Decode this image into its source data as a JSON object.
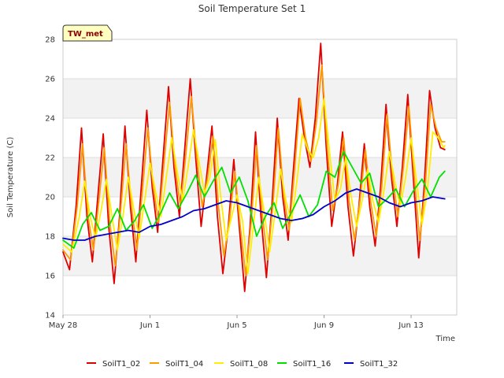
{
  "chart_data": {
    "type": "line",
    "title": "Soil Temperature Set 1",
    "xlabel": "Time",
    "ylabel": "Soil Temperature (C)",
    "badge": "TW_met",
    "x_tick_labels": [
      "May 28",
      "Jun 1",
      "Jun 5",
      "Jun 9",
      "Jun 13"
    ],
    "x_ticks_day_offset": [
      0,
      4,
      8,
      12,
      16
    ],
    "xlim_days": [
      0,
      18.1
    ],
    "ylim": [
      14,
      28
    ],
    "y_ticks": [
      14,
      16,
      18,
      20,
      22,
      24,
      26,
      28
    ],
    "grid": true,
    "legend_position": "bottom",
    "series": [
      {
        "name": "SoilT1_02",
        "color": "#e00000",
        "x_days": [
          0.0,
          0.3,
          0.6,
          0.85,
          1.1,
          1.35,
          1.6,
          1.85,
          2.1,
          2.35,
          2.6,
          2.85,
          3.1,
          3.35,
          3.6,
          3.85,
          4.1,
          4.35,
          4.6,
          4.85,
          5.1,
          5.35,
          5.6,
          5.85,
          6.1,
          6.35,
          6.6,
          6.85,
          7.1,
          7.35,
          7.6,
          7.85,
          8.1,
          8.35,
          8.6,
          8.85,
          9.1,
          9.35,
          9.6,
          9.85,
          10.1,
          10.35,
          10.6,
          10.85,
          11.1,
          11.35,
          11.6,
          11.85,
          12.1,
          12.35,
          12.6,
          12.85,
          13.1,
          13.35,
          13.6,
          13.85,
          14.1,
          14.35,
          14.6,
          14.85,
          15.1,
          15.35,
          15.6,
          15.85,
          16.1,
          16.35,
          16.6,
          16.85,
          17.1,
          17.35,
          17.55
        ],
        "y": [
          17.2,
          16.3,
          19.5,
          23.5,
          19.0,
          16.7,
          20.0,
          23.2,
          18.5,
          15.6,
          19.0,
          23.6,
          19.5,
          16.7,
          20.5,
          24.4,
          20.5,
          18.2,
          22.0,
          25.6,
          21.5,
          19.0,
          22.5,
          26.0,
          22.0,
          18.5,
          21.0,
          23.6,
          19.0,
          16.1,
          18.5,
          21.9,
          18.5,
          15.2,
          18.5,
          23.3,
          19.0,
          15.9,
          19.5,
          24.0,
          20.0,
          17.8,
          21.5,
          25.0,
          23.0,
          21.5,
          24.0,
          27.8,
          22.5,
          18.5,
          20.5,
          23.3,
          19.5,
          17.0,
          19.5,
          22.7,
          19.5,
          17.5,
          20.5,
          24.7,
          21.0,
          18.5,
          21.5,
          25.2,
          21.0,
          16.9,
          20.5,
          25.4,
          23.5,
          22.5,
          22.4
        ]
      },
      {
        "name": "SoilT1_04",
        "color": "#ff9900",
        "x_days": [
          0.0,
          0.35,
          0.65,
          0.9,
          1.15,
          1.4,
          1.65,
          1.9,
          2.15,
          2.4,
          2.65,
          2.9,
          3.15,
          3.4,
          3.65,
          3.9,
          4.15,
          4.4,
          4.65,
          4.9,
          5.15,
          5.4,
          5.65,
          5.9,
          6.15,
          6.4,
          6.65,
          6.9,
          7.15,
          7.4,
          7.65,
          7.9,
          8.15,
          8.4,
          8.65,
          8.9,
          9.15,
          9.4,
          9.65,
          9.9,
          10.15,
          10.4,
          10.65,
          10.9,
          11.15,
          11.4,
          11.65,
          11.9,
          12.15,
          12.4,
          12.65,
          12.9,
          13.15,
          13.4,
          13.65,
          13.9,
          14.15,
          14.4,
          14.65,
          14.9,
          15.15,
          15.4,
          15.65,
          15.9,
          16.15,
          16.4,
          16.65,
          16.9,
          17.15,
          17.4,
          17.55
        ],
        "y": [
          17.3,
          16.8,
          19.5,
          22.7,
          19.0,
          17.3,
          19.8,
          22.5,
          18.7,
          16.5,
          19.3,
          22.7,
          19.5,
          17.3,
          20.3,
          23.5,
          20.5,
          18.7,
          21.8,
          24.8,
          21.5,
          19.5,
          22.2,
          25.1,
          22.0,
          19.5,
          21.0,
          23.1,
          19.5,
          17.0,
          18.8,
          21.3,
          18.5,
          16.0,
          18.7,
          22.6,
          19.2,
          16.8,
          19.6,
          23.5,
          20.0,
          18.3,
          21.4,
          25.0,
          23.0,
          21.8,
          23.8,
          26.7,
          22.5,
          19.3,
          20.6,
          23.0,
          19.8,
          17.8,
          19.8,
          22.4,
          19.7,
          18.0,
          20.5,
          24.2,
          21.0,
          19.0,
          21.5,
          24.6,
          21.0,
          17.8,
          20.5,
          24.7,
          23.5,
          22.8,
          22.8
        ]
      },
      {
        "name": "SoilT1_08",
        "color": "#ffee00",
        "x_days": [
          0.0,
          0.4,
          0.75,
          1.0,
          1.25,
          1.5,
          1.75,
          2.0,
          2.25,
          2.5,
          2.75,
          3.0,
          3.25,
          3.5,
          3.75,
          4.0,
          4.25,
          4.5,
          4.75,
          5.0,
          5.25,
          5.5,
          5.75,
          6.0,
          6.25,
          6.5,
          6.75,
          7.0,
          7.25,
          7.5,
          7.75,
          8.0,
          8.25,
          8.5,
          8.75,
          9.0,
          9.25,
          9.5,
          9.75,
          10.0,
          10.25,
          10.5,
          10.75,
          11.0,
          11.25,
          11.5,
          11.75,
          12.0,
          12.25,
          12.5,
          12.75,
          13.0,
          13.25,
          13.5,
          13.75,
          14.0,
          14.25,
          14.5,
          14.75,
          15.0,
          15.25,
          15.5,
          15.75,
          16.0,
          16.25,
          16.5,
          16.75,
          17.0,
          17.25,
          17.5,
          17.55
        ],
        "y": [
          17.6,
          17.2,
          19.0,
          20.8,
          19.0,
          17.9,
          19.3,
          20.9,
          19.0,
          17.3,
          19.0,
          21.0,
          19.4,
          17.9,
          19.8,
          21.7,
          20.3,
          19.0,
          21.0,
          23.0,
          21.3,
          19.8,
          21.5,
          23.4,
          21.8,
          20.2,
          21.0,
          22.9,
          20.0,
          17.8,
          19.0,
          20.1,
          18.8,
          16.1,
          18.5,
          21.0,
          19.2,
          17.2,
          19.2,
          21.4,
          19.8,
          18.7,
          20.8,
          23.2,
          22.4,
          22.0,
          23.0,
          25.0,
          22.3,
          19.8,
          20.4,
          22.0,
          20.0,
          18.5,
          19.8,
          21.4,
          19.8,
          18.7,
          20.3,
          22.3,
          20.8,
          19.5,
          21.0,
          23.0,
          20.8,
          18.6,
          20.3,
          23.3,
          23.0,
          22.5,
          22.6
        ]
      },
      {
        "name": "SoilT1_16",
        "color": "#00e000",
        "x_days": [
          0.0,
          0.5,
          0.9,
          1.3,
          1.7,
          2.1,
          2.5,
          2.9,
          3.3,
          3.7,
          4.1,
          4.5,
          4.9,
          5.3,
          5.7,
          6.1,
          6.5,
          6.9,
          7.3,
          7.7,
          8.1,
          8.5,
          8.9,
          9.3,
          9.7,
          10.1,
          10.5,
          10.9,
          11.3,
          11.7,
          12.1,
          12.5,
          12.9,
          13.3,
          13.7,
          14.1,
          14.5,
          14.9,
          15.3,
          15.7,
          16.1,
          16.5,
          16.9,
          17.3,
          17.55
        ],
        "y": [
          17.8,
          17.4,
          18.6,
          19.2,
          18.3,
          18.5,
          19.4,
          18.3,
          18.8,
          19.6,
          18.4,
          19.2,
          20.2,
          19.4,
          20.2,
          21.1,
          20.0,
          20.8,
          21.5,
          20.2,
          21.0,
          19.8,
          18.0,
          19.0,
          19.7,
          18.4,
          19.2,
          20.1,
          19.0,
          19.6,
          21.3,
          21.0,
          22.3,
          21.5,
          20.7,
          21.2,
          19.5,
          19.9,
          20.4,
          19.5,
          20.3,
          20.9,
          20.0,
          21.0,
          21.3
        ]
      },
      {
        "name": "SoilT1_32",
        "color": "#0000cc",
        "x_days": [
          0.0,
          0.5,
          1.0,
          1.5,
          2.0,
          2.5,
          3.0,
          3.5,
          4.0,
          4.5,
          5.0,
          5.5,
          6.0,
          6.5,
          7.0,
          7.5,
          8.0,
          8.5,
          9.0,
          9.5,
          10.0,
          10.5,
          11.0,
          11.5,
          12.0,
          12.5,
          13.0,
          13.5,
          14.0,
          14.5,
          15.0,
          15.5,
          16.0,
          16.5,
          17.0,
          17.55
        ],
        "y": [
          17.9,
          17.8,
          17.8,
          18.0,
          18.1,
          18.2,
          18.3,
          18.2,
          18.5,
          18.6,
          18.8,
          19.0,
          19.3,
          19.4,
          19.6,
          19.8,
          19.7,
          19.5,
          19.3,
          19.1,
          18.9,
          18.8,
          18.9,
          19.1,
          19.5,
          19.8,
          20.2,
          20.4,
          20.2,
          20.0,
          19.7,
          19.5,
          19.7,
          19.8,
          20.0,
          19.9
        ]
      }
    ]
  }
}
